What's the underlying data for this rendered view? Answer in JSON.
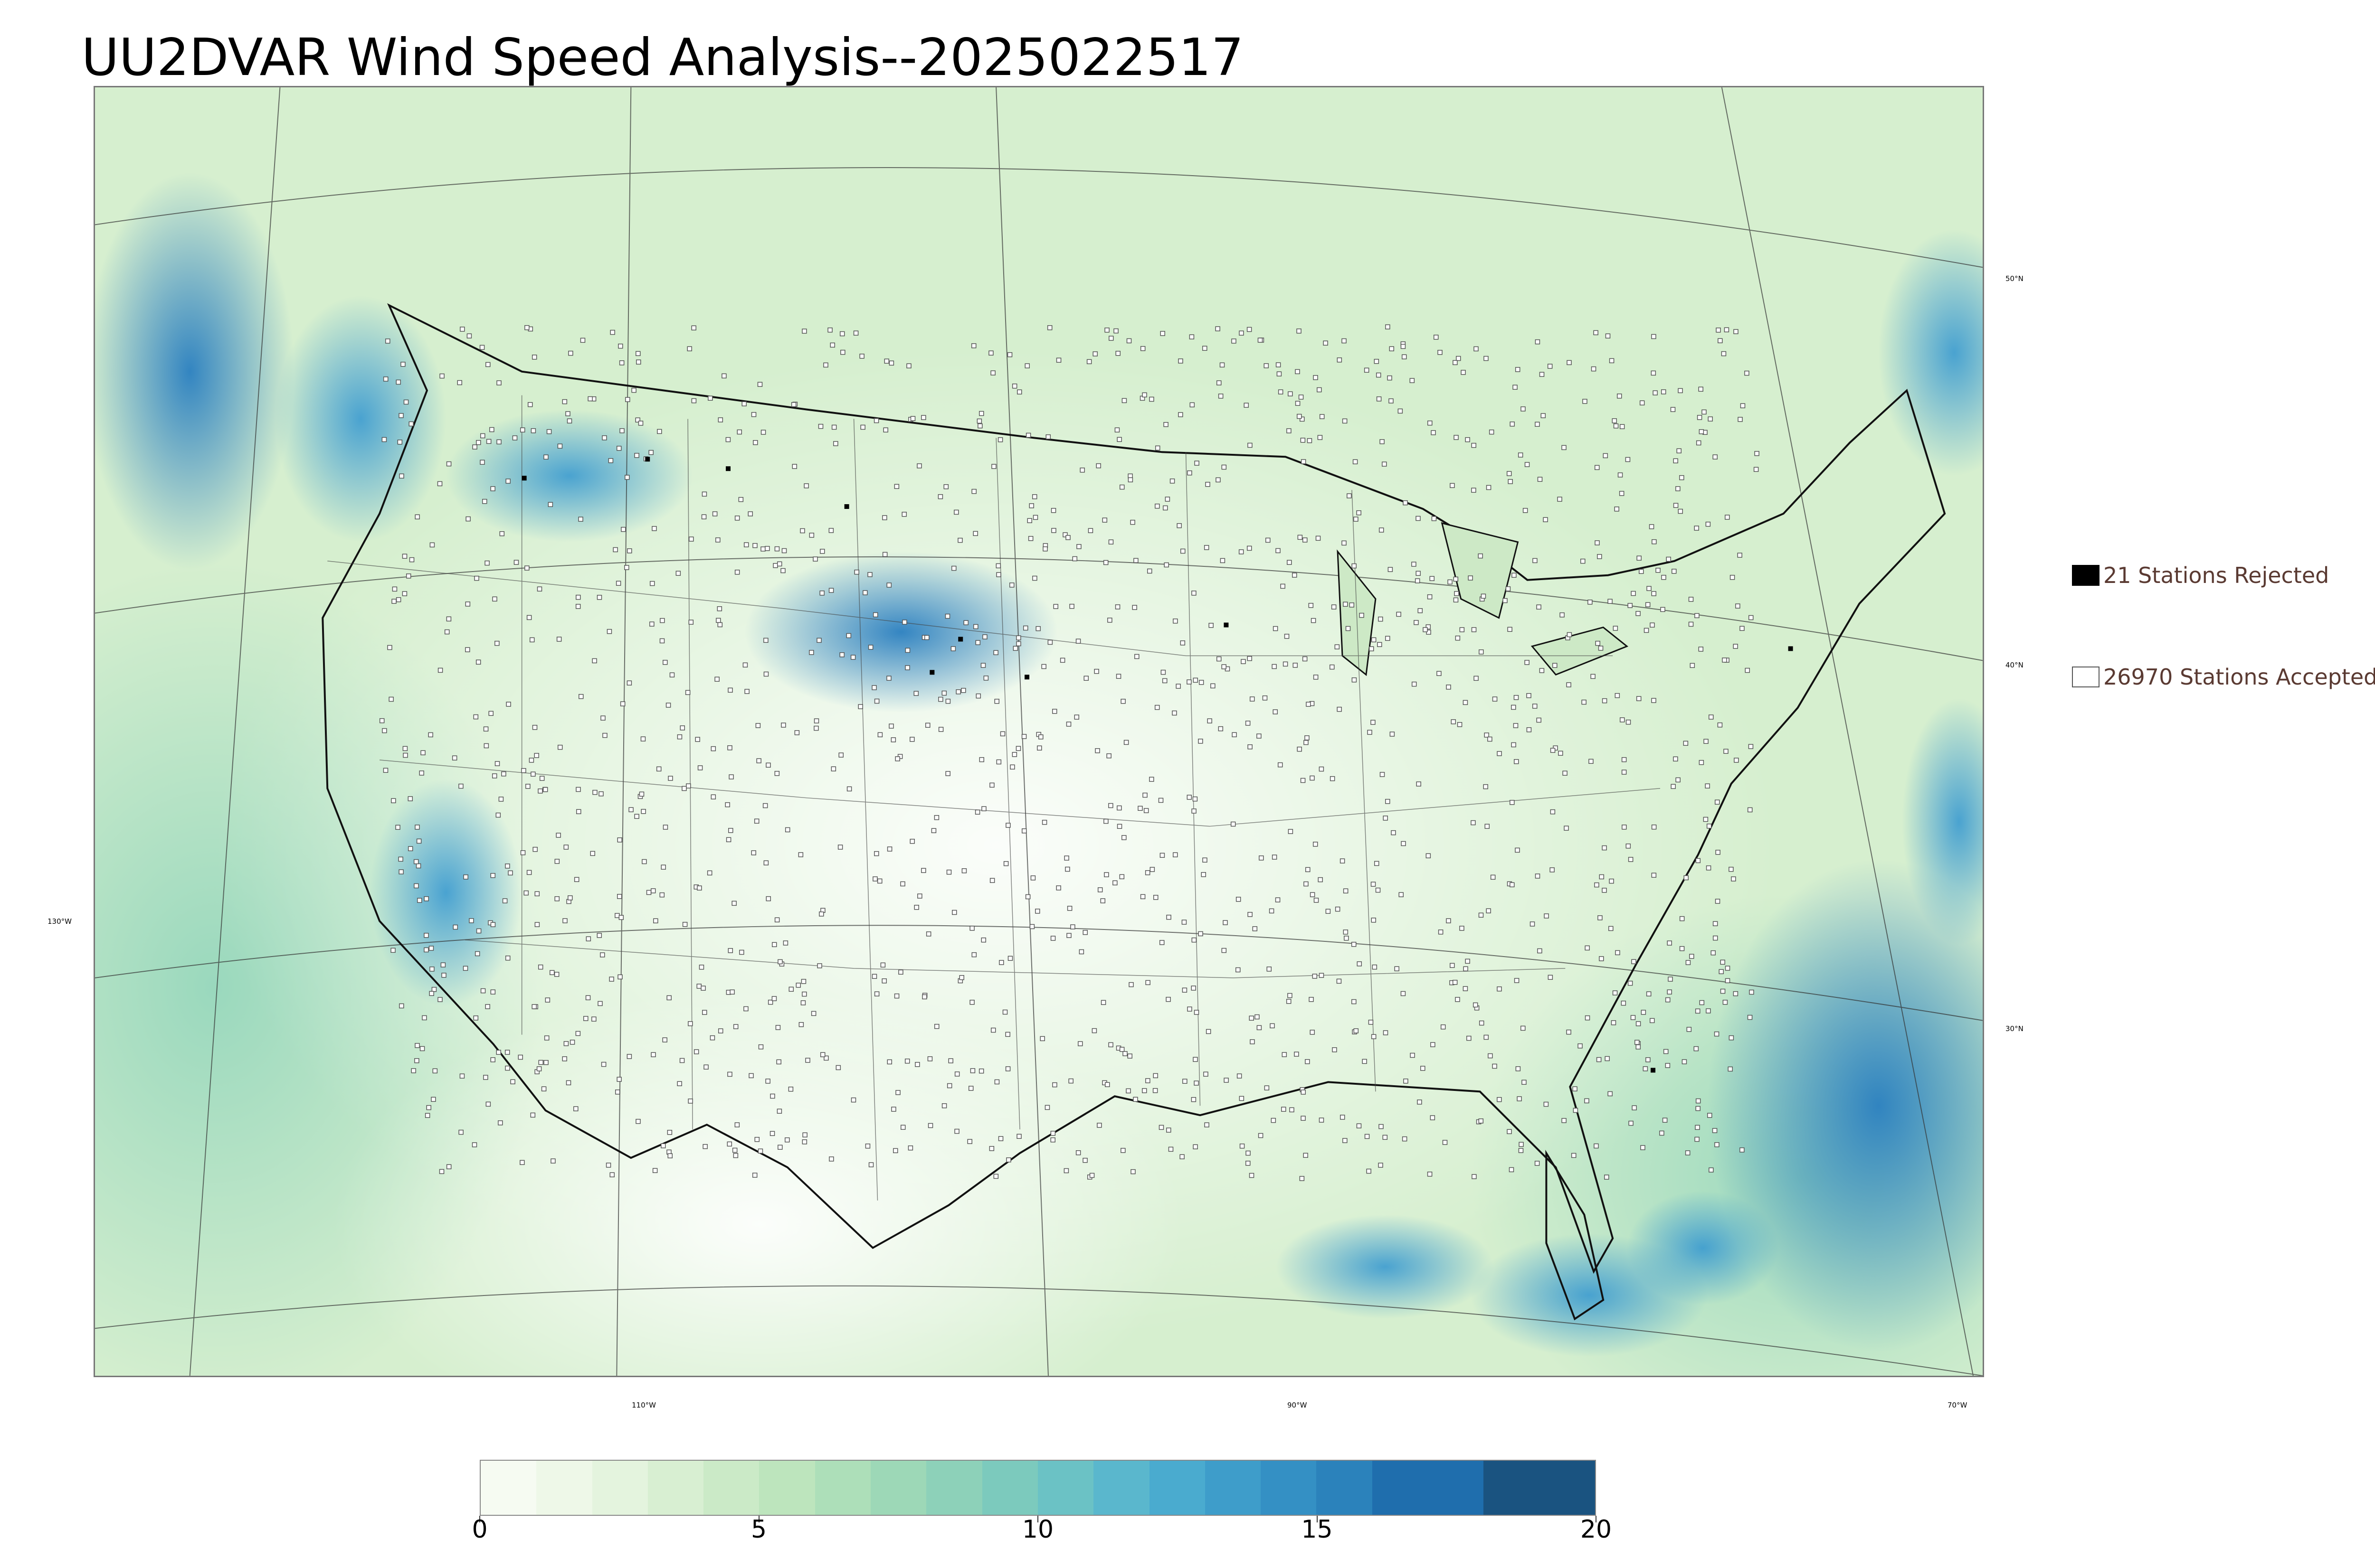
{
  "title": "UU2DVAR Wind Speed Analysis--2025022517",
  "map": {
    "projection": "Lambert conformal, CONUS domain",
    "field": "wind speed",
    "lat_labels": [
      "50°N",
      "40°N",
      "30°N"
    ],
    "lon_labels": [
      "130°W",
      "110°W",
      "90°W",
      "70°W"
    ]
  },
  "legend": {
    "rejected": {
      "label": "21 Stations Rejected",
      "count": 21,
      "swatch_color": "#000000"
    },
    "accepted": {
      "label": "26970 Stations Accepted",
      "count": 26970,
      "swatch_color": "#ffffff"
    }
  },
  "colorbar": {
    "min": 0,
    "max": 20,
    "tick_labels": [
      "0",
      "5",
      "10",
      "15",
      "20"
    ],
    "bins": [
      0,
      1,
      2,
      3,
      4,
      5,
      6,
      7,
      8,
      9,
      10,
      11,
      12,
      13,
      14,
      15,
      16,
      18,
      20
    ],
    "colors": [
      "#f6fbf2",
      "#eef8e8",
      "#e4f4de",
      "#d8efd2",
      "#cbeac7",
      "#bde5bd",
      "#addfb9",
      "#9dd8b7",
      "#8dd1b9",
      "#7ccabd",
      "#6bc2c5",
      "#5ab7cd",
      "#4aabcf",
      "#3e9dca",
      "#3490c4",
      "#2b82bb",
      "#1f6ead",
      "#1a5380"
    ],
    "colormap": "GnBu"
  },
  "colors": {
    "ocean_strong": "#2f8fcc",
    "land_base": "#e8f5e2",
    "station_outline": "#555555"
  }
}
